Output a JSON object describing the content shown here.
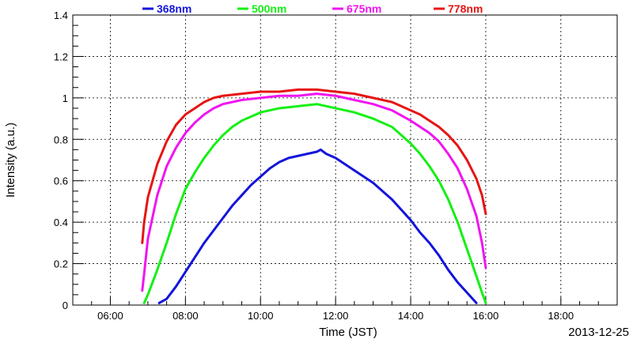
{
  "chart_data": {
    "type": "line",
    "title": "",
    "xlabel": "Time (JST)",
    "ylabel": "Intensity (a.u.)",
    "date": "2013-12-25",
    "xlim": [
      5.0,
      19.5
    ],
    "ylim": [
      0,
      1.4
    ],
    "x_ticks": [
      6,
      8,
      10,
      12,
      14,
      16,
      18
    ],
    "x_tick_labels": [
      "06:00",
      "08:00",
      "10:00",
      "12:00",
      "14:00",
      "16:00",
      "18:00"
    ],
    "y_ticks": [
      0,
      0.2,
      0.4,
      0.6,
      0.8,
      1.0,
      1.2,
      1.4
    ],
    "y_tick_labels": [
      "0",
      "0.2",
      "0.4",
      "0.6",
      "0.8",
      "1",
      "1.2",
      "1.4"
    ],
    "grid": true,
    "legend_position": "top",
    "series": [
      {
        "name": "368nm",
        "color": "#1414dc",
        "x": [
          7.3,
          7.5,
          7.75,
          8.0,
          8.25,
          8.5,
          8.75,
          9.0,
          9.25,
          9.5,
          9.75,
          10.0,
          10.25,
          10.5,
          10.75,
          11.0,
          11.25,
          11.5,
          11.6,
          11.75,
          12.0,
          12.25,
          12.5,
          12.75,
          13.0,
          13.25,
          13.5,
          13.75,
          14.0,
          14.25,
          14.5,
          14.75,
          15.0,
          15.25,
          15.5,
          15.75
        ],
        "y": [
          0.01,
          0.03,
          0.09,
          0.16,
          0.23,
          0.3,
          0.36,
          0.42,
          0.48,
          0.53,
          0.58,
          0.62,
          0.66,
          0.69,
          0.71,
          0.72,
          0.73,
          0.74,
          0.75,
          0.73,
          0.71,
          0.68,
          0.65,
          0.62,
          0.59,
          0.55,
          0.51,
          0.46,
          0.41,
          0.35,
          0.3,
          0.24,
          0.17,
          0.11,
          0.06,
          0.01
        ]
      },
      {
        "name": "500nm",
        "color": "#14f014",
        "x": [
          6.9,
          7.0,
          7.25,
          7.5,
          7.75,
          8.0,
          8.25,
          8.5,
          8.75,
          9.0,
          9.25,
          9.5,
          9.75,
          10.0,
          10.5,
          11.0,
          11.5,
          12.0,
          12.5,
          13.0,
          13.5,
          13.75,
          14.0,
          14.25,
          14.5,
          14.75,
          15.0,
          15.25,
          15.5,
          15.75,
          15.9,
          16.0
        ],
        "y": [
          0.01,
          0.05,
          0.17,
          0.3,
          0.44,
          0.56,
          0.64,
          0.71,
          0.77,
          0.82,
          0.86,
          0.89,
          0.91,
          0.93,
          0.95,
          0.96,
          0.97,
          0.95,
          0.93,
          0.9,
          0.86,
          0.82,
          0.78,
          0.73,
          0.67,
          0.6,
          0.51,
          0.4,
          0.27,
          0.14,
          0.06,
          0.01
        ]
      },
      {
        "name": "675nm",
        "color": "#f014f0",
        "x": [
          6.85,
          6.9,
          7.0,
          7.25,
          7.5,
          7.75,
          8.0,
          8.25,
          8.5,
          8.75,
          9.0,
          9.5,
          10.0,
          10.5,
          11.0,
          11.5,
          12.0,
          12.5,
          13.0,
          13.5,
          14.0,
          14.25,
          14.5,
          14.75,
          15.0,
          15.25,
          15.5,
          15.75,
          15.9,
          16.0
        ],
        "y": [
          0.07,
          0.15,
          0.32,
          0.53,
          0.67,
          0.76,
          0.83,
          0.88,
          0.92,
          0.95,
          0.97,
          0.99,
          1.0,
          1.01,
          1.01,
          1.02,
          1.01,
          0.99,
          0.97,
          0.94,
          0.89,
          0.86,
          0.83,
          0.79,
          0.73,
          0.66,
          0.56,
          0.43,
          0.3,
          0.18
        ]
      },
      {
        "name": "778nm",
        "color": "#e61414",
        "x": [
          6.85,
          6.9,
          7.0,
          7.25,
          7.5,
          7.75,
          8.0,
          8.25,
          8.5,
          8.75,
          9.0,
          9.5,
          10.0,
          10.5,
          11.0,
          11.5,
          12.0,
          12.5,
          13.0,
          13.5,
          14.0,
          14.25,
          14.5,
          14.75,
          15.0,
          15.25,
          15.5,
          15.75,
          15.9,
          16.0
        ],
        "y": [
          0.3,
          0.4,
          0.52,
          0.68,
          0.79,
          0.87,
          0.92,
          0.95,
          0.98,
          1.0,
          1.01,
          1.02,
          1.03,
          1.03,
          1.04,
          1.04,
          1.03,
          1.02,
          1.0,
          0.98,
          0.94,
          0.92,
          0.89,
          0.86,
          0.82,
          0.77,
          0.7,
          0.61,
          0.53,
          0.44
        ]
      }
    ]
  }
}
